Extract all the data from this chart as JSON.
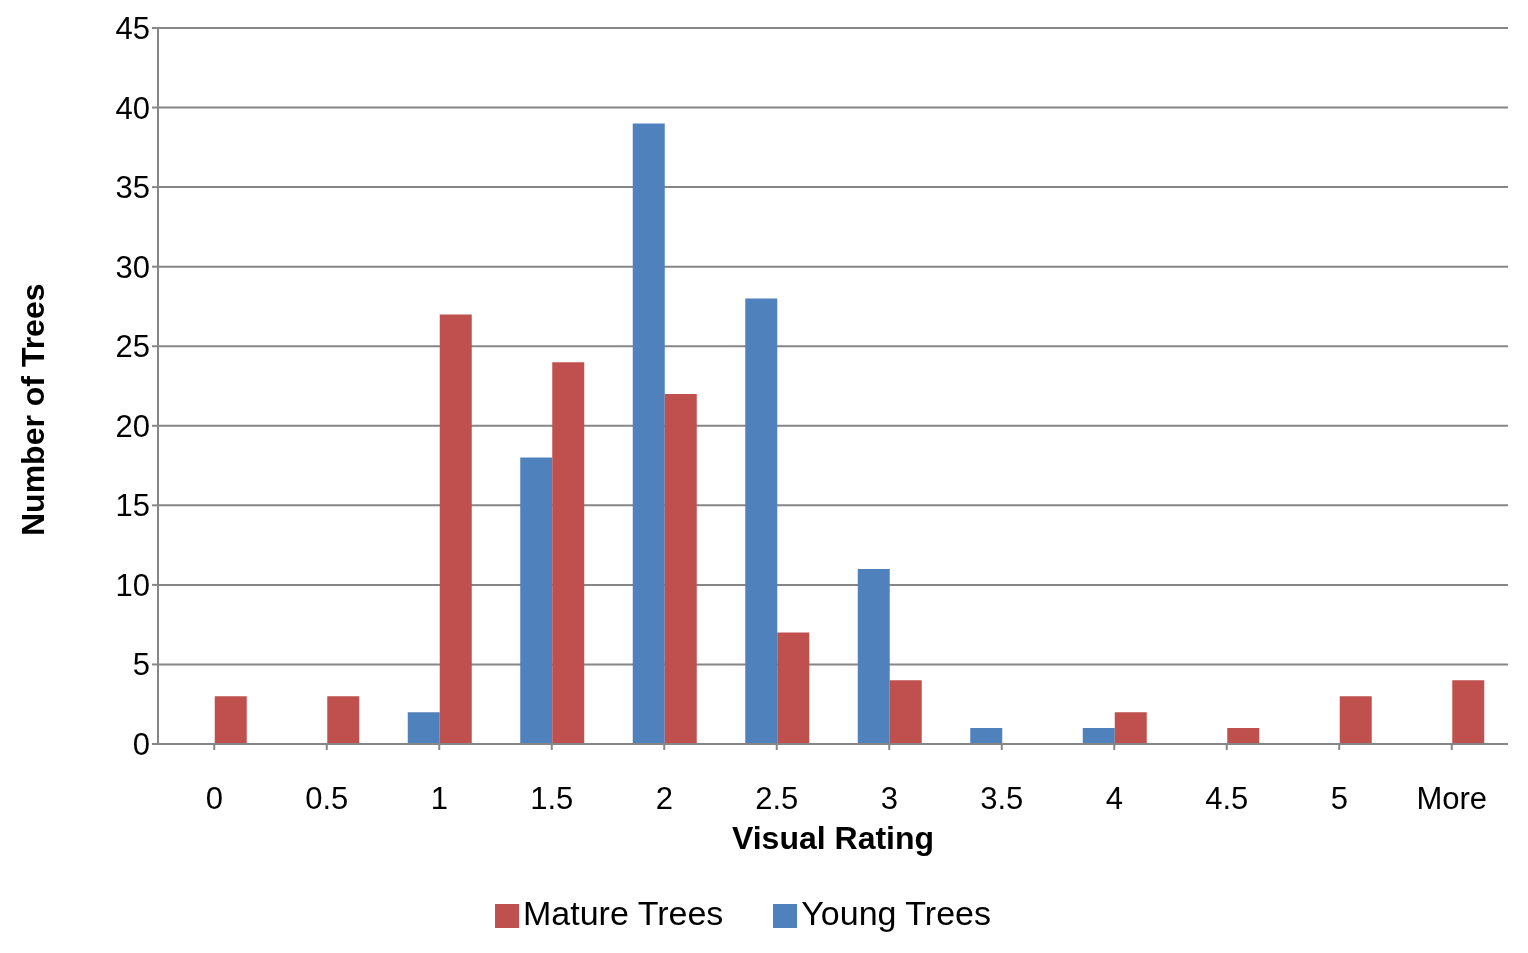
{
  "chart_data": {
    "type": "bar",
    "xlabel": "Visual Rating",
    "ylabel": "Number of Trees",
    "categories": [
      "0",
      "0.5",
      "1",
      "1.5",
      "2",
      "2.5",
      "3",
      "3.5",
      "4",
      "4.5",
      "5",
      "More"
    ],
    "series": [
      {
        "name": "Young Trees",
        "color": "#4f81bd",
        "values": [
          0,
          0,
          2,
          18,
          39,
          28,
          11,
          1,
          1,
          0,
          0,
          0
        ]
      },
      {
        "name": "Mature Trees",
        "color": "#c0504d",
        "values": [
          3,
          3,
          27,
          24,
          22,
          7,
          4,
          0,
          2,
          1,
          3,
          4
        ]
      }
    ],
    "ylim": [
      0,
      45
    ],
    "yticks": [
      0,
      5,
      10,
      15,
      20,
      25,
      30,
      35,
      40,
      45
    ],
    "grid": "y",
    "legend": "bottom"
  }
}
